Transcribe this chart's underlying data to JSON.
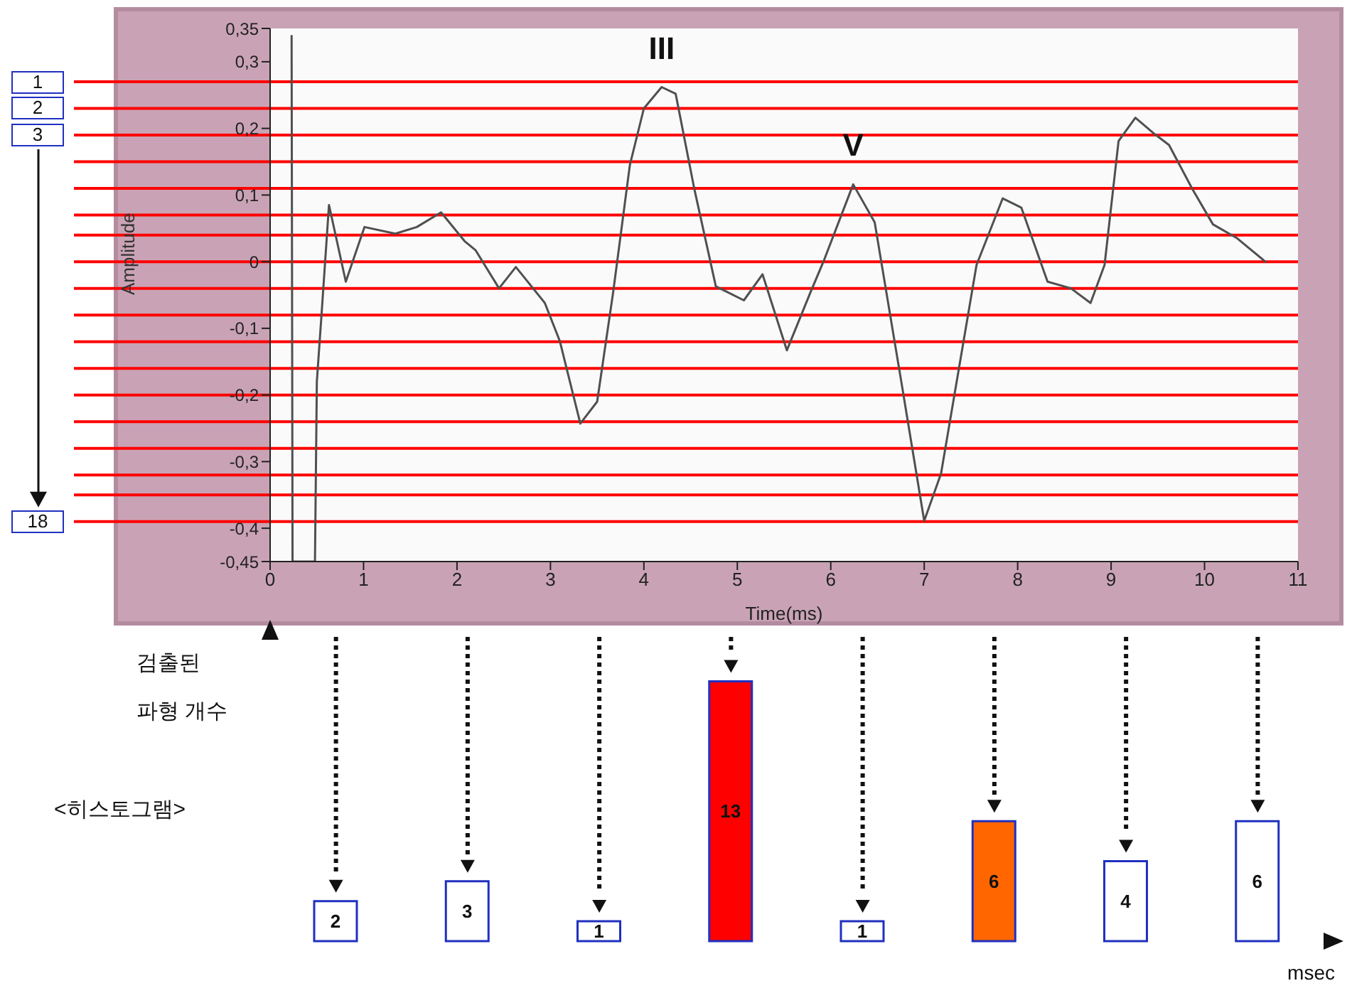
{
  "chart_data": [
    {
      "type": "line",
      "xlabel": "Time(ms)",
      "ylabel": "Amplitude",
      "x": [
        0.23,
        0.24,
        0.48,
        0.5,
        0.55,
        0.63,
        0.81,
        1.01,
        1.34,
        1.57,
        1.83,
        2.08,
        2.2,
        2.45,
        2.63,
        2.94,
        3.1,
        3.32,
        3.5,
        3.67,
        3.85,
        4.0,
        4.19,
        4.34,
        4.54,
        4.77,
        5.07,
        5.27,
        5.53,
        5.78,
        5.93,
        6.24,
        6.47,
        6.75,
        7.0,
        7.18,
        7.56,
        7.84,
        8.04,
        8.32,
        8.57,
        8.78,
        8.93,
        9.08,
        9.26,
        9.47,
        9.62,
        9.87,
        10.09,
        10.35,
        10.66
      ],
      "series": [
        {
          "color": "#505050",
          "values": [
            0.34,
            -0.45,
            -0.45,
            -0.18,
            -0.08,
            0.085,
            -0.03,
            0.052,
            0.042,
            0.052,
            0.074,
            0.031,
            0.017,
            -0.04,
            -0.008,
            -0.062,
            -0.119,
            -0.243,
            -0.21,
            -0.047,
            0.145,
            0.23,
            0.262,
            0.252,
            0.109,
            -0.037,
            -0.058,
            -0.019,
            -0.133,
            -0.047,
            0.003,
            0.116,
            0.059,
            -0.176,
            -0.389,
            -0.318,
            -0.005,
            0.095,
            0.081,
            -0.03,
            -0.04,
            -0.062,
            -0.005,
            0.181,
            0.216,
            0.191,
            0.175,
            0.109,
            0.056,
            0.035,
            -0.001
          ]
        }
      ],
      "xlim": [
        0,
        11
      ],
      "ylim": [
        -0.45,
        0.35
      ],
      "xticks": [
        0,
        1,
        2,
        3,
        4,
        5,
        6,
        7,
        8,
        9,
        10,
        11
      ],
      "yticks": [
        {
          "value": 0.35,
          "label": "0,35"
        },
        {
          "value": 0.3,
          "label": "0,3"
        },
        {
          "value": 0.2,
          "label": "0,2"
        },
        {
          "value": 0.1,
          "label": "0,1"
        },
        0,
        {
          "value": -0.1,
          "label": "-0,1"
        },
        {
          "value": -0.2,
          "label": "-0,2"
        },
        {
          "value": -0.3,
          "label": "-0,3"
        },
        {
          "value": -0.4,
          "label": "-0,4"
        },
        {
          "value": -0.45,
          "label": "-0,45"
        }
      ],
      "ref_lines": [
        {
          "axis": "y",
          "value": 0.27,
          "label": null,
          "color": "#ff0000"
        },
        {
          "axis": "y",
          "value": 0.23,
          "label": null,
          "color": "#ff0000"
        },
        {
          "axis": "y",
          "value": 0.19,
          "label": null,
          "color": "#ff0000"
        },
        {
          "axis": "y",
          "value": 0.15,
          "label": null,
          "color": "#ff0000"
        },
        {
          "axis": "y",
          "value": 0.11,
          "label": null,
          "color": "#ff0000"
        },
        {
          "axis": "y",
          "value": 0.07,
          "label": null,
          "color": "#ff0000"
        },
        {
          "axis": "y",
          "value": 0.04,
          "label": null,
          "color": "#ff0000"
        },
        {
          "axis": "y",
          "value": 0,
          "label": null,
          "color": "#ff0000"
        },
        {
          "axis": "y",
          "value": -0.04,
          "label": null,
          "color": "#ff0000"
        },
        {
          "axis": "y",
          "value": -0.08,
          "label": null,
          "color": "#ff0000"
        },
        {
          "axis": "y",
          "value": -0.12,
          "label": null,
          "color": "#ff0000"
        },
        {
          "axis": "y",
          "value": -0.16,
          "label": null,
          "color": "#ff0000"
        },
        {
          "axis": "y",
          "value": -0.2,
          "label": null,
          "color": "#ff0000"
        },
        {
          "axis": "y",
          "value": -0.24,
          "label": null,
          "color": "#ff0000"
        },
        {
          "axis": "y",
          "value": -0.28,
          "label": null,
          "color": "#ff0000"
        },
        {
          "axis": "y",
          "value": -0.32,
          "label": null,
          "color": "#ff0000"
        },
        {
          "axis": "y",
          "value": -0.35,
          "label": null,
          "color": "#ff0000"
        },
        {
          "axis": "y",
          "value": -0.39,
          "label": null,
          "color": "#ff0000"
        }
      ],
      "annotations": [
        {
          "text": "III",
          "x": 4.19,
          "y": 0.262
        },
        {
          "text": "V",
          "x": 6.24,
          "y": 0.116
        },
        "1",
        "2",
        "3",
        "18"
      ]
    },
    {
      "type": "bar",
      "xlabel": "msec",
      "ylabel": "검출된 파형 개수",
      "annotations": [
        "<히스토그램>"
      ],
      "categories": [
        null,
        null,
        null,
        null,
        null,
        null,
        null,
        null
      ],
      "values": [
        2,
        3,
        1,
        13,
        1,
        6,
        4,
        6
      ],
      "colors": [
        "#ffffff",
        "#ffffff",
        "#ffffff",
        "#ff0000",
        "#ffffff",
        "#ff6600",
        "#ffffff",
        "#ffffff"
      ],
      "data_labels": true
    }
  ]
}
